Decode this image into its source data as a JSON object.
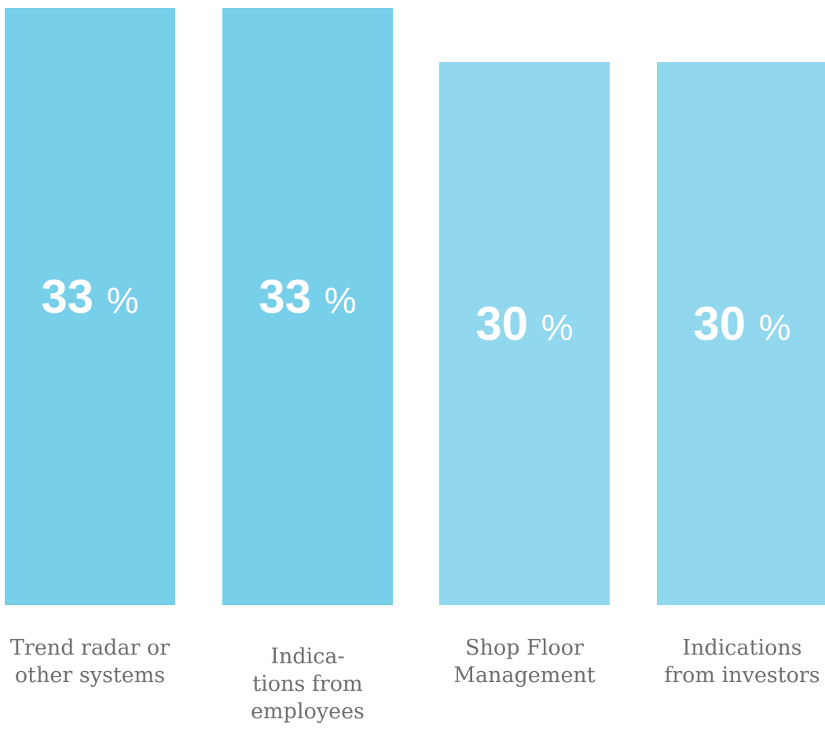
{
  "chart_data": {
    "type": "bar",
    "categories": [
      [
        "Trend radar or",
        "other systems"
      ],
      [
        "Indica-",
        "tions from",
        "employees"
      ],
      [
        "Shop Floor",
        "Management"
      ],
      [
        "Indications",
        "from investors"
      ]
    ],
    "values": [
      33,
      33,
      30,
      30
    ],
    "value_labels": [
      "33",
      "33",
      "30",
      "30"
    ],
    "value_unit": "%",
    "title": "",
    "xlabel": "",
    "ylabel": "",
    "ylim": [
      0,
      33
    ],
    "grid": false,
    "legend": "none",
    "colors": [
      "#77cfea",
      "#77cfea",
      "#91d7ee",
      "#91d7ee"
    ],
    "value_label_color": "#ffffff",
    "category_label_color": "#6f6f6f"
  }
}
